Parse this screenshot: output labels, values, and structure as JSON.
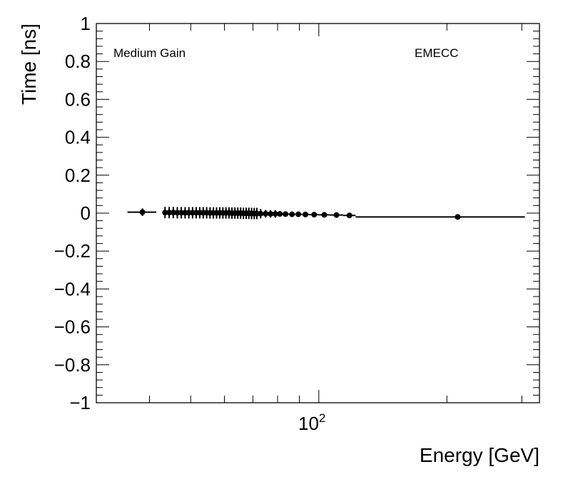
{
  "chart_data": {
    "type": "scatter",
    "title": "",
    "xlabel": "Energy [GeV]",
    "ylabel": "Time [ns]",
    "x_scale": "log",
    "xlim": [
      30,
      330
    ],
    "ylim": [
      -1,
      1
    ],
    "x_tick_label": {
      "base": "10",
      "exponent": "2",
      "value": 100
    },
    "y_ticks": [
      "1",
      "0.8",
      "0.6",
      "0.4",
      "0.2",
      "0",
      "−0.2",
      "−0.4",
      "−0.6",
      "−0.8",
      "−1"
    ],
    "y_tick_values": [
      1,
      0.8,
      0.6,
      0.4,
      0.2,
      0,
      -0.2,
      -0.4,
      -0.6,
      -0.8,
      -1
    ],
    "grid": false,
    "annotations": {
      "left": "Medium Gain",
      "right": "EMECC"
    },
    "color": "#000000",
    "points": [
      {
        "x": 38.5,
        "y": 0.005,
        "xerr": [
          35.5,
          41.5
        ],
        "yerr": 0.02
      },
      {
        "x": 43.5,
        "y": 0.003,
        "xerr": [
          43.0,
          44.0
        ],
        "yerr": 0.03
      },
      {
        "x": 44.5,
        "y": 0.003,
        "xerr": [
          44.0,
          45.0
        ],
        "yerr": 0.03
      },
      {
        "x": 45.5,
        "y": 0.003,
        "xerr": [
          45.0,
          46.0
        ],
        "yerr": 0.03
      },
      {
        "x": 46.5,
        "y": 0.002,
        "xerr": [
          46.0,
          47.0
        ],
        "yerr": 0.03
      },
      {
        "x": 47.5,
        "y": 0.002,
        "xerr": [
          47.0,
          48.0
        ],
        "yerr": 0.03
      },
      {
        "x": 48.5,
        "y": 0.002,
        "xerr": [
          48.0,
          49.0
        ],
        "yerr": 0.03
      },
      {
        "x": 49.5,
        "y": 0.002,
        "xerr": [
          49.0,
          50.0
        ],
        "yerr": 0.03
      },
      {
        "x": 50.5,
        "y": 0.002,
        "xerr": [
          50.0,
          51.0
        ],
        "yerr": 0.03
      },
      {
        "x": 51.5,
        "y": 0.002,
        "xerr": [
          51.0,
          52.0
        ],
        "yerr": 0.03
      },
      {
        "x": 52.5,
        "y": 0.002,
        "xerr": [
          52.0,
          53.0
        ],
        "yerr": 0.03
      },
      {
        "x": 53.5,
        "y": 0.002,
        "xerr": [
          53.0,
          54.0
        ],
        "yerr": 0.03
      },
      {
        "x": 54.5,
        "y": 0.002,
        "xerr": [
          54.0,
          55.0
        ],
        "yerr": 0.03
      },
      {
        "x": 55.5,
        "y": 0.001,
        "xerr": [
          55.0,
          56.0
        ],
        "yerr": 0.03
      },
      {
        "x": 56.5,
        "y": 0.001,
        "xerr": [
          56.0,
          57.0
        ],
        "yerr": 0.03
      },
      {
        "x": 57.5,
        "y": 0.001,
        "xerr": [
          57.0,
          58.0
        ],
        "yerr": 0.03
      },
      {
        "x": 58.5,
        "y": 0.001,
        "xerr": [
          58.0,
          59.0
        ],
        "yerr": 0.03
      },
      {
        "x": 59.5,
        "y": 0.001,
        "xerr": [
          59.0,
          60.0
        ],
        "yerr": 0.03
      },
      {
        "x": 60.5,
        "y": 0.001,
        "xerr": [
          60.0,
          61.0
        ],
        "yerr": 0.03
      },
      {
        "x": 61.5,
        "y": 0.001,
        "xerr": [
          61.0,
          62.0
        ],
        "yerr": 0.03
      },
      {
        "x": 62.5,
        "y": 0.0,
        "xerr": [
          62.0,
          63.0
        ],
        "yerr": 0.03
      },
      {
        "x": 63.5,
        "y": 0.0,
        "xerr": [
          63.0,
          64.0
        ],
        "yerr": 0.03
      },
      {
        "x": 64.5,
        "y": 0.0,
        "xerr": [
          64.0,
          65.0
        ],
        "yerr": 0.03
      },
      {
        "x": 65.5,
        "y": 0.0,
        "xerr": [
          65.0,
          66.0
        ],
        "yerr": 0.03
      },
      {
        "x": 66.5,
        "y": -0.001,
        "xerr": [
          66.0,
          67.0
        ],
        "yerr": 0.03
      },
      {
        "x": 67.5,
        "y": -0.001,
        "xerr": [
          67.0,
          68.0
        ],
        "yerr": 0.03
      },
      {
        "x": 68.5,
        "y": -0.001,
        "xerr": [
          68.0,
          69.0
        ],
        "yerr": 0.03
      },
      {
        "x": 69.5,
        "y": -0.002,
        "xerr": [
          69.0,
          70.0
        ],
        "yerr": 0.03
      },
      {
        "x": 70.5,
        "y": -0.002,
        "xerr": [
          70.0,
          71.0
        ],
        "yerr": 0.03
      },
      {
        "x": 71.5,
        "y": -0.002,
        "xerr": [
          71.0,
          72.0
        ],
        "yerr": 0.03
      },
      {
        "x": 73.0,
        "y": -0.003,
        "xerr": [
          72.0,
          74.0
        ],
        "yerr": 0.025
      },
      {
        "x": 75.0,
        "y": -0.003,
        "xerr": [
          74.0,
          76.0
        ],
        "yerr": 0.02
      },
      {
        "x": 77.0,
        "y": -0.004,
        "xerr": [
          76.0,
          78.0
        ],
        "yerr": 0.02
      },
      {
        "x": 79.0,
        "y": -0.004,
        "xerr": [
          78.0,
          80.0
        ],
        "yerr": 0.02
      },
      {
        "x": 81.0,
        "y": -0.004,
        "xerr": [
          80.0,
          82.0
        ],
        "yerr": 0.015
      },
      {
        "x": 83.5,
        "y": -0.005,
        "xerr": [
          82.0,
          85.0
        ],
        "yerr": 0.01
      },
      {
        "x": 86.5,
        "y": -0.006,
        "xerr": [
          85.0,
          88.0
        ],
        "yerr": 0.01
      },
      {
        "x": 89.5,
        "y": -0.006,
        "xerr": [
          88.0,
          91.0
        ],
        "yerr": 0.008
      },
      {
        "x": 93.0,
        "y": -0.007,
        "xerr": [
          91.0,
          95.0
        ],
        "yerr": 0.007
      },
      {
        "x": 97.5,
        "y": -0.008,
        "xerr": [
          95.0,
          100.0
        ],
        "yerr": 0.006
      },
      {
        "x": 103.0,
        "y": -0.009,
        "xerr": [
          100.0,
          106.0
        ],
        "yerr": 0.005
      },
      {
        "x": 110.0,
        "y": -0.01,
        "xerr": [
          106.0,
          114.0
        ],
        "yerr": 0.005
      },
      {
        "x": 118.0,
        "y": -0.012,
        "xerr": [
          114.0,
          122.0
        ],
        "yerr": 0.005
      },
      {
        "x": 212.0,
        "y": -0.02,
        "xerr": [
          122.0,
          305.0
        ],
        "yerr": 0.005
      }
    ]
  }
}
